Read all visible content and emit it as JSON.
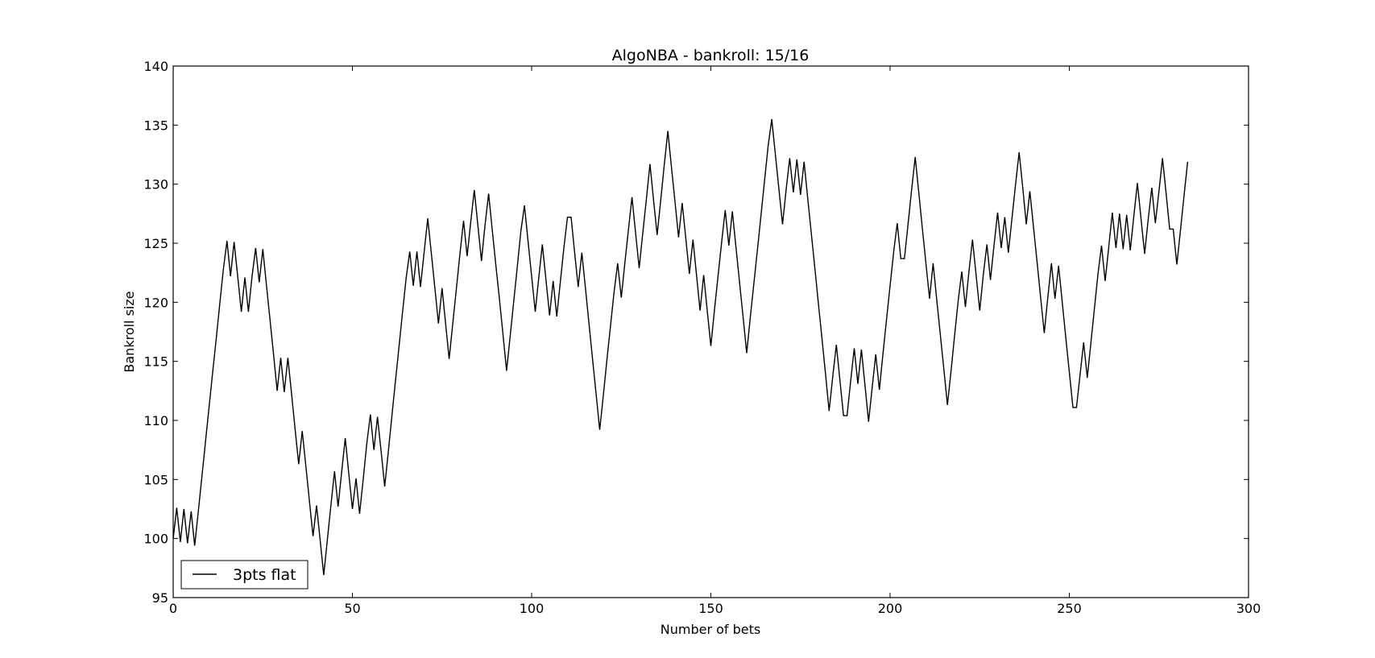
{
  "chart_data": {
    "type": "line",
    "title": "AlgoNBA - bankroll: 15/16",
    "xlabel": "Number of bets",
    "ylabel": "Bankroll size",
    "xlim": [
      0,
      300
    ],
    "ylim": [
      95,
      140
    ],
    "x_ticks": [
      0,
      50,
      100,
      150,
      200,
      250,
      300
    ],
    "y_ticks": [
      95,
      100,
      105,
      110,
      115,
      120,
      125,
      130,
      135,
      140
    ],
    "grid": false,
    "legend_position": "lower-left",
    "series": [
      {
        "name": "3pts flat",
        "color": "#000000",
        "x": [
          0,
          1,
          2,
          3,
          4,
          5,
          6,
          7,
          8,
          9,
          10,
          11,
          12,
          13,
          14,
          15,
          16,
          17,
          18,
          19,
          20,
          21,
          22,
          23,
          24,
          25,
          26,
          27,
          28,
          29,
          30,
          31,
          32,
          33,
          34,
          35,
          36,
          37,
          38,
          39,
          40,
          41,
          42,
          43,
          44,
          45,
          46,
          47,
          48,
          49,
          50,
          51,
          52,
          53,
          54,
          55,
          56,
          57,
          58,
          59,
          60,
          61,
          62,
          63,
          64,
          65,
          66,
          67,
          68,
          69,
          70,
          71,
          72,
          73,
          74,
          75,
          76,
          77,
          78,
          79,
          80,
          81,
          82,
          83,
          84,
          85,
          86,
          87,
          88,
          89,
          90,
          91,
          92,
          93,
          94,
          95,
          96,
          97,
          98,
          99,
          100,
          101,
          102,
          103,
          104,
          105,
          106,
          107,
          108,
          109,
          110,
          111,
          112,
          113,
          114,
          115,
          116,
          117,
          118,
          119,
          120,
          121,
          122,
          123,
          124,
          125,
          126,
          127,
          128,
          129,
          130,
          131,
          132,
          133,
          134,
          135,
          136,
          137,
          138,
          139,
          140,
          141,
          142,
          143,
          144,
          145,
          146,
          147,
          148,
          149,
          150,
          151,
          152,
          153,
          154,
          155,
          156,
          157,
          158,
          159,
          160,
          161,
          162,
          163,
          164,
          165,
          166,
          167,
          168,
          169,
          170,
          171,
          172,
          173,
          174,
          175,
          176,
          177,
          178,
          179,
          180,
          181,
          182,
          183,
          184,
          185,
          186,
          187,
          188,
          189,
          190,
          191,
          192,
          193,
          194,
          195,
          196,
          197,
          198,
          199,
          200,
          201,
          202,
          203,
          204,
          205,
          206,
          207,
          208,
          209,
          210,
          211,
          212,
          213,
          214,
          215,
          216,
          217,
          218,
          219,
          220,
          221,
          222,
          223,
          224,
          225,
          226,
          227,
          228,
          229,
          230,
          231,
          232,
          233,
          234,
          235,
          236,
          237,
          238,
          239,
          240,
          241,
          242,
          243,
          244,
          245,
          246,
          247,
          248,
          249,
          250,
          251,
          252,
          253,
          254,
          255,
          256,
          257,
          258,
          259,
          260,
          261,
          262,
          263,
          264,
          265,
          266,
          267,
          268,
          269,
          270,
          271,
          272,
          273,
          274,
          275,
          276,
          277,
          278,
          279,
          280,
          281,
          282,
          283
        ],
        "y": [
          100,
          102.6,
          99.7,
          102.5,
          99.6,
          102.3,
          99.4,
          102.3,
          105.2,
          108.2,
          111.1,
          114,
          116.9,
          119.9,
          122.8,
          125.2,
          122.2,
          125.1,
          122.2,
          119.2,
          122.1,
          119.2,
          122.2,
          124.6,
          121.7,
          124.5,
          121.5,
          118.6,
          115.6,
          112.5,
          115.3,
          112.4,
          115.3,
          112.3,
          109.3,
          106.3,
          109.1,
          106.2,
          103.2,
          100.2,
          102.8,
          99.9,
          96.9,
          99.9,
          102.8,
          105.7,
          102.7,
          105.6,
          108.5,
          105.5,
          102.5,
          105.1,
          102.1,
          105,
          108,
          110.5,
          107.5,
          110.3,
          107.4,
          104.4,
          107.3,
          110.3,
          113.3,
          116.2,
          119.2,
          122.1,
          124.3,
          121.4,
          124.3,
          121.3,
          124.2,
          127.1,
          124.2,
          121.2,
          118.2,
          121.2,
          118.2,
          115.2,
          118.2,
          121.1,
          124.1,
          126.9,
          123.9,
          126.8,
          129.5,
          126.5,
          123.5,
          126.5,
          129.2,
          126.2,
          123.2,
          120.3,
          117.3,
          114.2,
          117.1,
          120.1,
          123,
          126,
          128.2,
          125.2,
          122.2,
          119.2,
          122.1,
          124.9,
          121.9,
          118.9,
          121.8,
          118.8,
          121.7,
          124.6,
          127.2,
          127.2,
          124.2,
          121.3,
          124.2,
          121.2,
          118.2,
          115.2,
          112.2,
          109.2,
          112.1,
          115.1,
          118,
          120.9,
          123.3,
          120.4,
          123.3,
          126.1,
          128.9,
          125.9,
          122.9,
          125.8,
          128.7,
          131.7,
          128.7,
          125.7,
          128.6,
          131.6,
          134.5,
          131.5,
          128.5,
          125.5,
          128.4,
          125.4,
          122.4,
          125.3,
          122.3,
          119.3,
          122.3,
          119.3,
          116.3,
          119.3,
          122.2,
          125.1,
          127.8,
          124.8,
          127.7,
          124.7,
          121.7,
          118.7,
          115.7,
          118.7,
          121.6,
          124.5,
          127.4,
          130.4,
          133.3,
          135.5,
          132.5,
          129.5,
          126.6,
          129.5,
          132.2,
          129.3,
          132.1,
          129.1,
          131.9,
          128.9,
          125.9,
          122.9,
          119.9,
          116.9,
          113.9,
          110.8,
          113.7,
          116.4,
          113.4,
          110.4,
          110.4,
          113.3,
          116.1,
          113.1,
          116,
          113,
          109.9,
          112.8,
          115.6,
          112.6,
          115.6,
          118.5,
          121.4,
          124.3,
          126.7,
          123.7,
          123.7,
          126.6,
          129.5,
          132.3,
          129.3,
          126.3,
          123.3,
          120.3,
          123.3,
          120.3,
          117.3,
          114.3,
          111.3,
          114.2,
          117.2,
          120.1,
          122.6,
          119.6,
          122.6,
          125.3,
          122.3,
          119.3,
          122.3,
          124.9,
          121.9,
          124.8,
          127.6,
          124.6,
          127.2,
          124.2,
          127.1,
          130,
          132.7,
          129.7,
          126.6,
          129.4,
          126.4,
          123.4,
          120.4,
          117.4,
          120.4,
          123.3,
          120.3,
          123.1,
          120.1,
          117.1,
          114.1,
          111.1,
          111.1,
          113.9,
          116.6,
          113.6,
          116.5,
          119.5,
          122.4,
          124.8,
          121.8,
          124.7,
          127.6,
          124.6,
          127.5,
          124.5,
          127.4,
          124.4,
          127.3,
          130.1,
          127.1,
          124.1,
          127,
          129.7,
          126.7,
          129.4,
          132.2,
          129.2,
          126.2,
          126.2,
          123.2,
          126.1,
          129,
          131.9
        ]
      }
    ]
  }
}
